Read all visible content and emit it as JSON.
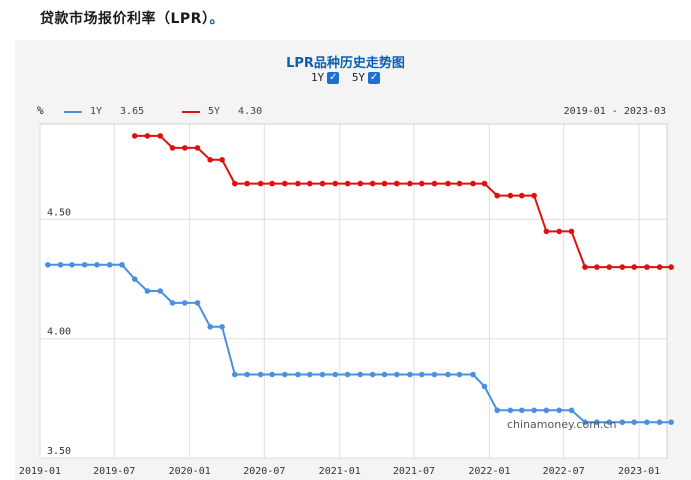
{
  "heading": "贷款市场报价利率（LPR）",
  "chart_data": {
    "type": "line",
    "title": "LPR品种历史走势图",
    "ylabel": "%",
    "date_range": "2019-01 - 2023-03",
    "ylim": [
      3.5,
      4.9
    ],
    "yticks": [
      "3.50",
      "4.00",
      "4.50"
    ],
    "xticks": [
      "2019-01",
      "2019-07",
      "2020-01",
      "2020-07",
      "2021-01",
      "2021-07",
      "2022-01",
      "2022-07",
      "2023-01"
    ],
    "series": [
      {
        "name": "1Y",
        "latest": "3.65",
        "color": "#4a90e2",
        "points": [
          [
            "2019-01-20",
            4.31
          ],
          [
            "2019-02-20",
            4.31
          ],
          [
            "2019-03-20",
            4.31
          ],
          [
            "2019-04-20",
            4.31
          ],
          [
            "2019-05-20",
            4.31
          ],
          [
            "2019-06-20",
            4.31
          ],
          [
            "2019-07-20",
            4.31
          ],
          [
            "2019-08-20",
            4.25
          ],
          [
            "2019-09-20",
            4.2
          ],
          [
            "2019-10-21",
            4.2
          ],
          [
            "2019-11-20",
            4.15
          ],
          [
            "2019-12-20",
            4.15
          ],
          [
            "2020-01-20",
            4.15
          ],
          [
            "2020-02-20",
            4.05
          ],
          [
            "2020-03-20",
            4.05
          ],
          [
            "2020-04-20",
            3.85
          ],
          [
            "2020-05-20",
            3.85
          ],
          [
            "2020-06-22",
            3.85
          ],
          [
            "2020-07-20",
            3.85
          ],
          [
            "2020-08-20",
            3.85
          ],
          [
            "2020-09-21",
            3.85
          ],
          [
            "2020-10-20",
            3.85
          ],
          [
            "2020-11-20",
            3.85
          ],
          [
            "2020-12-21",
            3.85
          ],
          [
            "2021-01-20",
            3.85
          ],
          [
            "2021-02-20",
            3.85
          ],
          [
            "2021-03-22",
            3.85
          ],
          [
            "2021-04-20",
            3.85
          ],
          [
            "2021-05-20",
            3.85
          ],
          [
            "2021-06-21",
            3.85
          ],
          [
            "2021-07-20",
            3.85
          ],
          [
            "2021-08-20",
            3.85
          ],
          [
            "2021-09-22",
            3.85
          ],
          [
            "2021-10-20",
            3.85
          ],
          [
            "2021-11-22",
            3.85
          ],
          [
            "2021-12-20",
            3.8
          ],
          [
            "2022-01-20",
            3.7
          ],
          [
            "2022-02-21",
            3.7
          ],
          [
            "2022-03-21",
            3.7
          ],
          [
            "2022-04-20",
            3.7
          ],
          [
            "2022-05-20",
            3.7
          ],
          [
            "2022-06-20",
            3.7
          ],
          [
            "2022-07-20",
            3.7
          ],
          [
            "2022-08-22",
            3.65
          ],
          [
            "2022-09-20",
            3.65
          ],
          [
            "2022-10-20",
            3.65
          ],
          [
            "2022-11-21",
            3.65
          ],
          [
            "2022-12-20",
            3.65
          ],
          [
            "2023-01-20",
            3.65
          ],
          [
            "2023-02-20",
            3.65
          ],
          [
            "2023-03-20",
            3.65
          ]
        ]
      },
      {
        "name": "5Y",
        "latest": "4.30",
        "color": "#e01010",
        "points": [
          [
            "2019-08-20",
            4.85
          ],
          [
            "2019-09-20",
            4.85
          ],
          [
            "2019-10-21",
            4.85
          ],
          [
            "2019-11-20",
            4.8
          ],
          [
            "2019-12-20",
            4.8
          ],
          [
            "2020-01-20",
            4.8
          ],
          [
            "2020-02-20",
            4.75
          ],
          [
            "2020-03-20",
            4.75
          ],
          [
            "2020-04-20",
            4.65
          ],
          [
            "2020-05-20",
            4.65
          ],
          [
            "2020-06-22",
            4.65
          ],
          [
            "2020-07-20",
            4.65
          ],
          [
            "2020-08-20",
            4.65
          ],
          [
            "2020-09-21",
            4.65
          ],
          [
            "2020-10-20",
            4.65
          ],
          [
            "2020-11-20",
            4.65
          ],
          [
            "2020-12-21",
            4.65
          ],
          [
            "2021-01-20",
            4.65
          ],
          [
            "2021-02-20",
            4.65
          ],
          [
            "2021-03-22",
            4.65
          ],
          [
            "2021-04-20",
            4.65
          ],
          [
            "2021-05-20",
            4.65
          ],
          [
            "2021-06-21",
            4.65
          ],
          [
            "2021-07-20",
            4.65
          ],
          [
            "2021-08-20",
            4.65
          ],
          [
            "2021-09-22",
            4.65
          ],
          [
            "2021-10-20",
            4.65
          ],
          [
            "2021-11-22",
            4.65
          ],
          [
            "2021-12-20",
            4.65
          ],
          [
            "2022-01-20",
            4.6
          ],
          [
            "2022-02-21",
            4.6
          ],
          [
            "2022-03-21",
            4.6
          ],
          [
            "2022-04-20",
            4.6
          ],
          [
            "2022-05-20",
            4.45
          ],
          [
            "2022-06-20",
            4.45
          ],
          [
            "2022-07-20",
            4.45
          ],
          [
            "2022-08-22",
            4.3
          ],
          [
            "2022-09-20",
            4.3
          ],
          [
            "2022-10-20",
            4.3
          ],
          [
            "2022-11-21",
            4.3
          ],
          [
            "2022-12-20",
            4.3
          ],
          [
            "2023-01-20",
            4.3
          ],
          [
            "2023-02-20",
            4.3
          ],
          [
            "2023-03-20",
            4.3
          ]
        ]
      }
    ],
    "grid": true,
    "watermark": "chinamoney.com.cn"
  },
  "toggles": [
    {
      "label": "1Y",
      "checked": true,
      "check_glyph": "✓"
    },
    {
      "label": "5Y",
      "checked": true,
      "check_glyph": "✓"
    }
  ]
}
